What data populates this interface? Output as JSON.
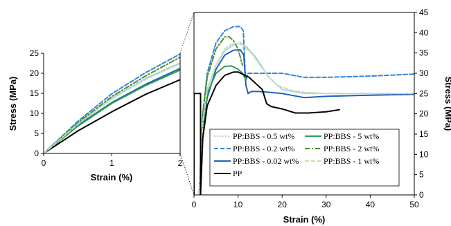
{
  "chart_data": [
    {
      "type": "line",
      "title": "",
      "xlabel": "Strain (%)",
      "ylabel": "Stress (MPa)",
      "xlim": [
        0,
        2
      ],
      "ylim": [
        0,
        25
      ],
      "xticks": [
        "0",
        "1",
        "2"
      ],
      "yticks": [
        "0",
        "5",
        "10",
        "15",
        "20",
        "25"
      ],
      "grid": false,
      "series": [
        {
          "name": "PP:BBS - 0.5 wt%",
          "color": "#9DC3E6",
          "dash": "dotted",
          "x": [
            0,
            0.5,
            1,
            1.5,
            2
          ],
          "y": [
            0,
            7.2,
            13.8,
            18.8,
            22.6
          ]
        },
        {
          "name": "PP:BBS - 0.2 wt%",
          "color": "#2E86DE",
          "dash": "dashed",
          "x": [
            0,
            0.5,
            1,
            1.5,
            2
          ],
          "y": [
            0,
            8.0,
            14.9,
            20.2,
            24.8
          ]
        },
        {
          "name": "PP:BBS - 0.02 wt%",
          "color": "#1F5FBF",
          "dash": "solid",
          "x": [
            0,
            0.5,
            1,
            1.5,
            2
          ],
          "y": [
            0,
            7.0,
            12.7,
            17.3,
            21.2
          ]
        },
        {
          "name": "PP",
          "color": "#000000",
          "dash": "solid",
          "x": [
            0,
            0.5,
            1,
            1.5,
            2
          ],
          "y": [
            0,
            5.6,
            10.4,
            14.8,
            18.4
          ]
        },
        {
          "name": "PP:BBS - 5 wt%",
          "color": "#2E9E4F",
          "dash": "solid",
          "x": [
            0,
            0.5,
            1,
            1.5,
            2
          ],
          "y": [
            0,
            6.8,
            12.5,
            17.0,
            20.8
          ]
        },
        {
          "name": "PP:BBS - 2 wt%",
          "color": "#4E8F2A",
          "dash": "dashdot",
          "x": [
            0,
            0.5,
            1,
            1.5,
            2
          ],
          "y": [
            0,
            7.6,
            14.2,
            19.4,
            24.0
          ]
        },
        {
          "name": "PP:BBS - 1 wt%",
          "color": "#C5E0B4",
          "dash": "dashed",
          "x": [
            0,
            0.5,
            1,
            1.5,
            2
          ],
          "y": [
            0,
            7.3,
            13.6,
            18.5,
            22.4
          ]
        }
      ]
    },
    {
      "type": "line",
      "title": "",
      "xlabel": "Strain (%)",
      "ylabel": "Stress (MPa)",
      "xlim": [
        0,
        50
      ],
      "ylim": [
        0,
        45
      ],
      "xticks": [
        "0",
        "10",
        "20",
        "30",
        "40",
        "50"
      ],
      "yticks": [
        "0",
        "5",
        "10",
        "15",
        "20",
        "25",
        "30",
        "35",
        "40",
        "45"
      ],
      "grid": false,
      "legend_position": "bottom-center",
      "series": [
        {
          "name": "PP:BBS - 0.5 wt%",
          "color": "#9DC3E6",
          "dash": "dotted",
          "x": [
            1.2,
            2,
            3,
            5,
            7,
            9,
            10.5,
            12,
            14,
            15.5,
            17,
            20,
            25,
            30,
            40,
            50
          ],
          "y": [
            0,
            18,
            26,
            32,
            35.5,
            37,
            37.5,
            36.5,
            34,
            31.5,
            29,
            26,
            25,
            25,
            25,
            25
          ]
        },
        {
          "name": "PP:BBS - 0.2 wt%",
          "color": "#2E86DE",
          "dash": "dashed",
          "x": [
            1.2,
            2,
            3,
            5,
            7,
            9,
            10.5,
            11.2,
            11.7,
            12,
            12.3,
            15,
            20,
            25,
            30,
            40,
            50
          ],
          "y": [
            0,
            20,
            30,
            37.5,
            40.5,
            41.5,
            41.5,
            40.5,
            28,
            29,
            30,
            30,
            30,
            29,
            29,
            29.3,
            29.8
          ]
        },
        {
          "name": "PP:BBS - 0.02 wt%",
          "color": "#1F5FBF",
          "dash": "solid",
          "x": [
            1.2,
            2,
            3,
            5,
            7,
            9,
            10.5,
            11.3,
            11.8,
            12.3,
            13,
            15,
            20,
            25,
            30,
            40,
            50
          ],
          "y": [
            0,
            16,
            24,
            31,
            34.5,
            35.7,
            35.8,
            34.5,
            27,
            25,
            25.5,
            25.5,
            25,
            24,
            24.3,
            24.6,
            24.8
          ]
        },
        {
          "name": "PP:BBS - 5 wt%",
          "color": "#2E9E4F",
          "dash": "solid",
          "x": [
            1.2,
            2,
            3,
            5,
            7,
            8.5,
            10,
            11,
            11.5,
            11.8
          ],
          "y": [
            0,
            17,
            25,
            30,
            31.7,
            31.8,
            31,
            30,
            29,
            28.5
          ]
        },
        {
          "name": "PP:BBS - 2 wt%",
          "color": "#4E8F2A",
          "dash": "dashdot",
          "x": [
            1.2,
            2,
            3,
            5,
            7,
            8,
            9,
            10,
            11
          ],
          "y": [
            0,
            20,
            29,
            36,
            39,
            39,
            38,
            36,
            32
          ]
        },
        {
          "name": "PP:BBS - 1 wt%",
          "color": "#C5E0B4",
          "dash": "dashed",
          "x": [
            1.2,
            2,
            3,
            5,
            7,
            9,
            11,
            13,
            15,
            17,
            19,
            22,
            25,
            30,
            40,
            50
          ],
          "y": [
            0,
            18,
            26,
            32,
            36,
            37.5,
            37,
            35,
            32,
            29,
            27,
            25.8,
            25.3,
            25,
            25,
            25
          ]
        },
        {
          "name": "PP",
          "color": "#000000",
          "dash": "solid",
          "x": [
            0,
            0,
            1.5,
            1.5,
            2,
            3,
            5,
            7,
            9,
            10,
            11,
            12.5,
            14,
            15.5,
            16.5,
            17.5,
            20,
            23,
            26,
            30,
            33
          ],
          "y": [
            0,
            25,
            25,
            0,
            14,
            22,
            27,
            29.5,
            30.3,
            30.3,
            29.8,
            29,
            27.5,
            26,
            22.5,
            21.8,
            21.2,
            20.2,
            20.2,
            20.5,
            21
          ]
        }
      ]
    }
  ],
  "inset_plot": {
    "name": "zoomed-initial-region"
  },
  "main_plot": {
    "name": "full-stress-strain-curve"
  }
}
